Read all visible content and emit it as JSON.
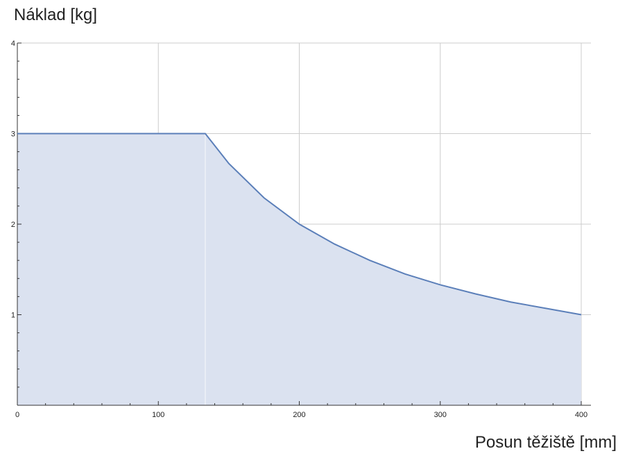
{
  "chart_data": {
    "type": "area",
    "title": "",
    "ylabel": "Náklad [kg]",
    "xlabel": "Posun těžiště [mm]",
    "xlim": [
      0,
      400
    ],
    "ylim": [
      0,
      4
    ],
    "xticks": [
      0,
      100,
      200,
      300,
      400
    ],
    "yticks": [
      1,
      2,
      3,
      4
    ],
    "grid": true,
    "series": [
      {
        "x": [
          0,
          133.3,
          150,
          175,
          200,
          225,
          250,
          275,
          300,
          325,
          350,
          375,
          400
        ],
        "y": [
          3,
          3,
          2.67,
          2.29,
          2.0,
          1.78,
          1.6,
          1.45,
          1.33,
          1.23,
          1.14,
          1.07,
          1.0
        ],
        "line_color": "#5b7fb9",
        "fill_color": "#dbe2f0"
      }
    ]
  }
}
